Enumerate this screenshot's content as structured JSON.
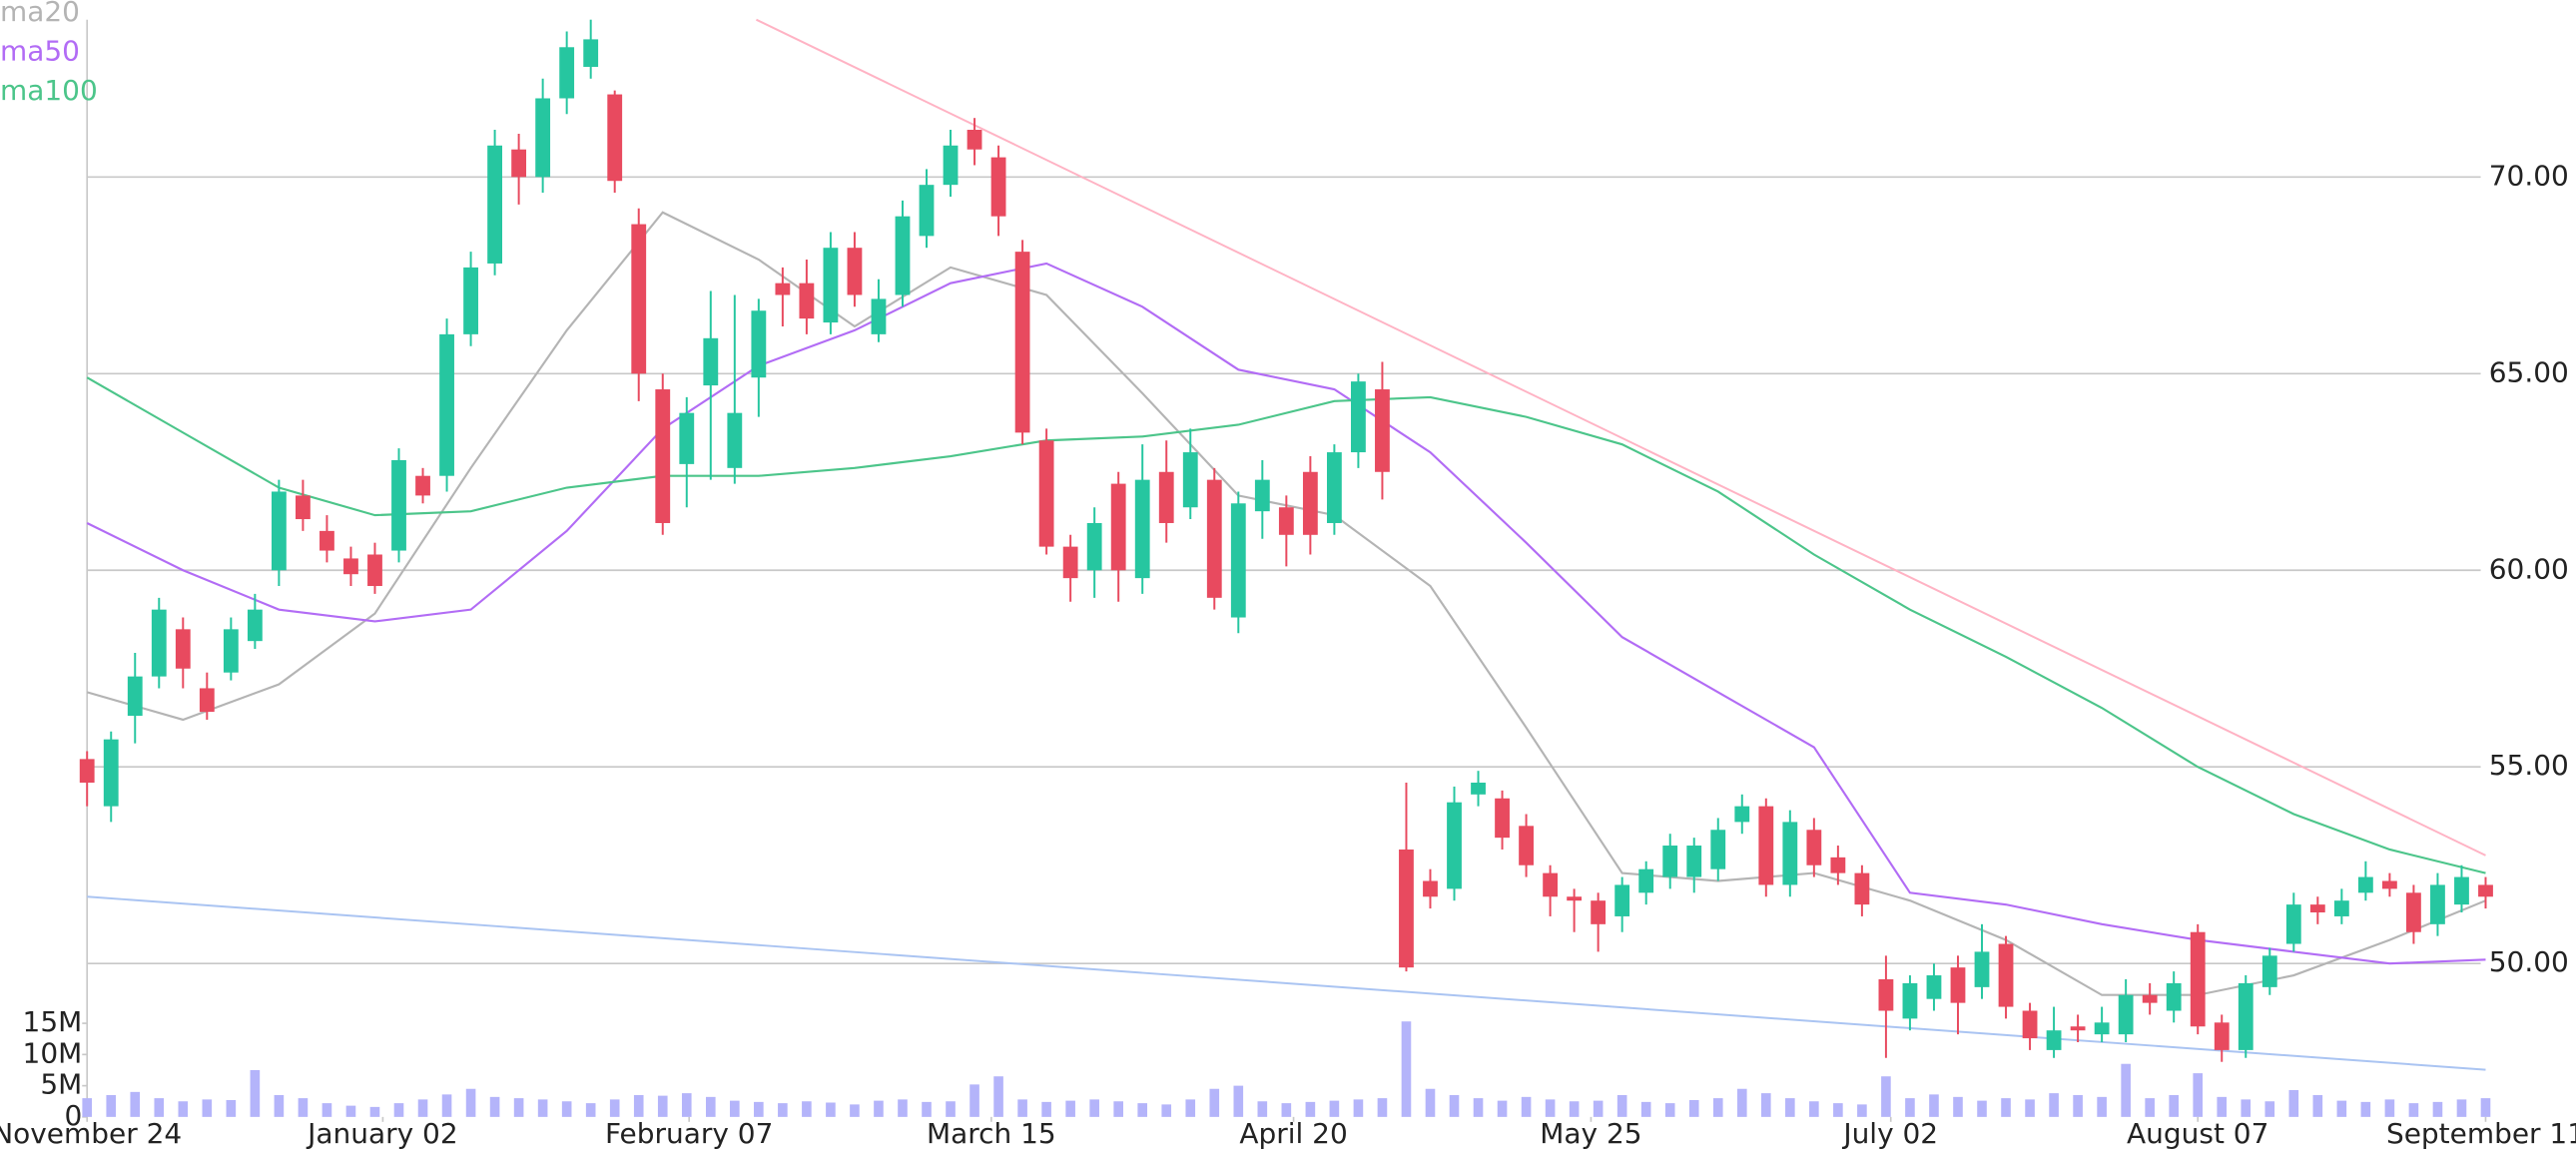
{
  "chart_data": {
    "type": "candlestick",
    "xlim": [
      0,
      100
    ],
    "xticks": [
      {
        "value": 0,
        "label": "November 24"
      },
      {
        "value": 12.33,
        "label": "January 02"
      },
      {
        "value": 25.1,
        "label": "February 07"
      },
      {
        "value": 37.7,
        "label": "March 15"
      },
      {
        "value": 50.3,
        "label": "April 20"
      },
      {
        "value": 62.7,
        "label": "May 25"
      },
      {
        "value": 75.2,
        "label": "July 02"
      },
      {
        "value": 88,
        "label": "August 07"
      },
      {
        "value": 100,
        "label": "September 11"
      }
    ],
    "ylim": [
      46.1,
      74.5
    ],
    "yticks": [
      {
        "value": 50,
        "label": "50.00"
      },
      {
        "value": 55,
        "label": "55.00"
      },
      {
        "value": 60,
        "label": "60.00"
      },
      {
        "value": 65,
        "label": "65.00"
      },
      {
        "value": 70,
        "label": "70.00"
      }
    ],
    "grid": true,
    "up_color": "#26c6a0",
    "down_color": "#e84a5f",
    "open": [
      55.2,
      54.0,
      56.3,
      57.3,
      58.5,
      57.0,
      57.4,
      58.2,
      60.0,
      61.9,
      61.0,
      60.3,
      60.4,
      60.5,
      62.4,
      62.4,
      66.0,
      67.8,
      70.7,
      70.0,
      72.0,
      72.8,
      72.1,
      68.8,
      64.6,
      62.7,
      64.7,
      62.6,
      64.9,
      67.3,
      67.3,
      66.3,
      68.2,
      66.0,
      67.0,
      68.5,
      69.8,
      71.2,
      70.5,
      68.1,
      63.3,
      60.6,
      60.0,
      62.2,
      59.8,
      62.5,
      61.6,
      62.3,
      58.8,
      61.5,
      61.6,
      62.5,
      61.2,
      63.0,
      64.6,
      52.9,
      52.1,
      51.9,
      54.3,
      54.2,
      53.5,
      52.3,
      51.7,
      51.6,
      51.2,
      51.8,
      52.2,
      52.2,
      52.4,
      53.6,
      54.0,
      52.0,
      53.4,
      52.7,
      52.3,
      49.6,
      48.6,
      49.1,
      49.9,
      49.4,
      50.5,
      48.8,
      47.8,
      48.4,
      48.2,
      48.2,
      49.2,
      48.8,
      50.8,
      48.5,
      47.8,
      49.4,
      50.5,
      51.5,
      51.2,
      51.8,
      52.1,
      51.8,
      51.0,
      51.5,
      52.0
    ],
    "high": [
      55.4,
      55.9,
      57.9,
      59.3,
      58.8,
      57.4,
      58.8,
      59.4,
      62.3,
      62.3,
      61.4,
      60.6,
      60.7,
      63.1,
      62.6,
      66.4,
      68.1,
      71.2,
      71.1,
      72.5,
      73.7,
      74.0,
      72.2,
      69.2,
      65.0,
      64.4,
      67.1,
      67.0,
      66.9,
      67.7,
      67.9,
      68.6,
      68.6,
      67.4,
      69.4,
      70.2,
      71.2,
      71.5,
      70.8,
      68.4,
      63.6,
      60.9,
      61.6,
      62.5,
      63.2,
      63.3,
      63.6,
      62.6,
      62.0,
      62.8,
      61.9,
      62.9,
      63.2,
      65.0,
      65.3,
      54.6,
      52.4,
      54.5,
      54.9,
      54.4,
      53.8,
      52.5,
      51.9,
      51.8,
      52.2,
      52.6,
      53.3,
      53.2,
      53.7,
      54.3,
      54.2,
      53.9,
      53.7,
      53.0,
      52.5,
      50.2,
      49.7,
      50.0,
      50.2,
      51.0,
      50.7,
      49.0,
      48.9,
      48.7,
      48.9,
      49.6,
      49.5,
      49.8,
      51.0,
      48.7,
      49.7,
      50.4,
      51.8,
      51.7,
      51.9,
      52.6,
      52.3,
      52.0,
      52.3,
      52.5,
      52.2
    ],
    "low": [
      54.0,
      53.6,
      55.6,
      57.0,
      57.0,
      56.2,
      57.2,
      58.0,
      59.6,
      61.0,
      60.2,
      59.6,
      59.4,
      60.2,
      61.7,
      62.0,
      65.7,
      67.5,
      69.3,
      69.6,
      71.6,
      72.5,
      69.6,
      64.3,
      60.9,
      61.6,
      62.3,
      62.2,
      63.9,
      66.2,
      66.0,
      66.0,
      66.7,
      65.8,
      66.7,
      68.2,
      69.5,
      70.3,
      68.5,
      63.2,
      60.4,
      59.2,
      59.3,
      59.2,
      59.4,
      60.7,
      61.3,
      59.0,
      58.4,
      60.8,
      60.1,
      60.4,
      60.9,
      62.6,
      61.8,
      49.8,
      51.4,
      51.6,
      54.0,
      52.9,
      52.2,
      51.2,
      50.8,
      50.3,
      50.8,
      51.5,
      51.9,
      51.8,
      52.1,
      53.3,
      51.7,
      51.7,
      52.2,
      52.0,
      51.2,
      47.6,
      48.3,
      48.8,
      48.2,
      49.1,
      48.6,
      47.8,
      47.6,
      48.0,
      48.0,
      48.0,
      48.7,
      48.5,
      48.2,
      47.5,
      47.6,
      49.2,
      50.3,
      51.0,
      51.0,
      51.6,
      51.7,
      50.5,
      50.7,
      51.3,
      51.4
    ],
    "close": [
      54.6,
      55.7,
      57.3,
      59.0,
      57.5,
      56.4,
      58.5,
      59.0,
      62.0,
      61.3,
      60.5,
      59.9,
      59.6,
      62.8,
      61.9,
      66.0,
      67.7,
      70.8,
      70.0,
      72.0,
      73.3,
      73.5,
      69.9,
      65.0,
      61.2,
      64.0,
      65.9,
      64.0,
      66.6,
      67.0,
      66.4,
      68.2,
      67.0,
      66.9,
      69.0,
      69.8,
      70.8,
      70.7,
      69.0,
      63.5,
      60.6,
      59.8,
      61.2,
      60.0,
      62.3,
      61.2,
      63.0,
      59.3,
      61.7,
      62.3,
      60.9,
      60.9,
      63.0,
      64.8,
      62.5,
      49.9,
      51.7,
      54.1,
      54.6,
      53.2,
      52.5,
      51.7,
      51.6,
      51.0,
      52.0,
      52.4,
      53.0,
      53.0,
      53.4,
      54.0,
      52.0,
      53.6,
      52.5,
      52.3,
      51.5,
      48.8,
      49.5,
      49.7,
      49.0,
      50.3,
      48.9,
      48.1,
      48.3,
      48.3,
      48.5,
      49.2,
      49.0,
      49.5,
      48.4,
      47.8,
      49.5,
      50.2,
      51.5,
      51.3,
      51.6,
      52.2,
      51.9,
      50.8,
      52.0,
      52.2,
      51.7
    ],
    "volume_color": "#b4b4fa",
    "volume_ylim": [
      0,
      18
    ],
    "volume_yticks": [
      0,
      {
        "value": 5,
        "label": "5M"
      },
      {
        "value": 10,
        "label": "10M"
      },
      {
        "value": 15,
        "label": "15M"
      }
    ],
    "volume": [
      3,
      3.5,
      4,
      3,
      2.5,
      2.8,
      2.7,
      7.5,
      3.5,
      3,
      2.2,
      1.8,
      1.6,
      2.2,
      2.8,
      3.6,
      4.5,
      3.2,
      3,
      2.8,
      2.5,
      2.2,
      2.8,
      3.5,
      3.4,
      3.8,
      3.2,
      2.6,
      2.4,
      2.2,
      2.5,
      2.3,
      2.0,
      2.6,
      2.8,
      2.4,
      2.5,
      5.2,
      6.5,
      2.8,
      2.4,
      2.6,
      2.8,
      2.5,
      2.2,
      2.0,
      2.8,
      4.5,
      5.0,
      2.5,
      2.2,
      2.4,
      2.6,
      2.8,
      3.0,
      15.3,
      4.5,
      3.5,
      3.0,
      2.6,
      3.2,
      2.8,
      2.5,
      2.6,
      3.5,
      2.4,
      2.2,
      2.7,
      3.0,
      4.5,
      3.8,
      3.0,
      2.5,
      2.2,
      2.0,
      6.5,
      3.0,
      3.6,
      3.2,
      2.6,
      3.0,
      2.8,
      3.8,
      3.5,
      3.2,
      8.5,
      3.0,
      3.5,
      7.0,
      3.2,
      2.8,
      2.5,
      4.3,
      3.5,
      2.6,
      2.4,
      2.8,
      2.2,
      2.4,
      2.8,
      3.0
    ],
    "series": [
      {
        "name": "ma20",
        "color": "#b4b4b4",
        "x": [
          0,
          4,
          8,
          12,
          16,
          20,
          24,
          28,
          32,
          36,
          40,
          44,
          48,
          52,
          56,
          60,
          64,
          68,
          72,
          76,
          80,
          84,
          88,
          92,
          96,
          100
        ],
        "values": [
          56.9,
          56.2,
          57.1,
          58.9,
          62.6,
          66.1,
          69.1,
          67.9,
          66.2,
          67.7,
          67.0,
          64.5,
          61.9,
          61.4,
          59.6,
          56.0,
          52.3,
          52.1,
          52.3,
          51.6,
          50.6,
          49.2,
          49.2,
          49.7,
          50.6,
          51.6
        ]
      },
      {
        "name": "ma50",
        "color": "#b26cf5",
        "x": [
          0,
          4,
          8,
          12,
          16,
          20,
          24,
          28,
          32,
          36,
          40,
          44,
          48,
          52,
          56,
          60,
          64,
          68,
          72,
          76,
          80,
          84,
          88,
          92,
          96,
          100
        ],
        "values": [
          61.2,
          60.0,
          59.0,
          58.7,
          59.0,
          61.0,
          63.6,
          65.2,
          66.1,
          67.3,
          67.8,
          66.7,
          65.1,
          64.6,
          63.0,
          60.7,
          58.3,
          56.9,
          55.5,
          51.8,
          51.5,
          51.0,
          50.6,
          50.3,
          50.0,
          50.1
        ]
      },
      {
        "name": "ma100",
        "color": "#4cc58a",
        "x": [
          0,
          4,
          8,
          12,
          16,
          20,
          24,
          28,
          32,
          36,
          40,
          44,
          48,
          52,
          56,
          60,
          64,
          68,
          72,
          76,
          80,
          84,
          88,
          92,
          96,
          100
        ],
        "values": [
          64.9,
          63.5,
          62.1,
          61.4,
          61.5,
          62.1,
          62.4,
          62.4,
          62.6,
          62.9,
          63.3,
          63.4,
          63.7,
          64.3,
          64.4,
          63.9,
          63.2,
          62.0,
          60.4,
          59.0,
          57.8,
          56.5,
          55.0,
          53.8,
          52.9,
          52.3
        ]
      }
    ],
    "lines": [
      {
        "color": "#ffb3c4",
        "x": [
          27.9,
          100
        ],
        "values": [
          74.0,
          52.75
        ]
      },
      {
        "color": "#aac4f2",
        "x": [
          0,
          100
        ],
        "values": [
          51.7,
          47.3
        ]
      }
    ]
  }
}
